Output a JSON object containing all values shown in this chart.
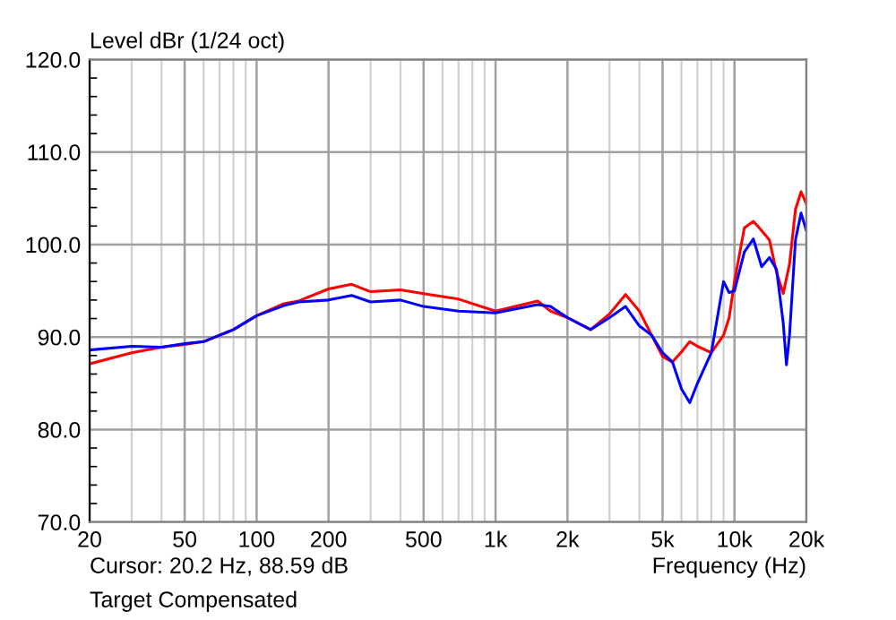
{
  "chart_data": {
    "type": "line",
    "title": "Level dBr (1/24 oct)",
    "xlabel": "Frequency (Hz)",
    "log": "x",
    "grid": true,
    "marker": "none",
    "line_style": "solid",
    "xlim": [
      20,
      20000
    ],
    "ylim": [
      70,
      120
    ],
    "xticks": [
      20,
      50,
      100,
      200,
      500,
      {
        "value": 1000,
        "label": "1k"
      },
      {
        "value": 2000,
        "label": "2k"
      },
      {
        "value": 5000,
        "label": "5k"
      },
      {
        "value": 10000,
        "label": "10k"
      },
      {
        "value": 20000,
        "label": "20k"
      }
    ],
    "yticks": [
      {
        "value": 70,
        "label": "70.0"
      },
      {
        "value": 80,
        "label": "80.0"
      },
      {
        "value": 90,
        "label": "90.0"
      },
      {
        "value": 100,
        "label": "100.0"
      },
      {
        "value": 110,
        "label": "110.0"
      },
      {
        "value": 120,
        "label": "120.0"
      }
    ],
    "annotations": [
      "Cursor: 20.2 Hz, 88.59 dB",
      "Target Compensated"
    ],
    "series": [
      {
        "color": "#ff0000",
        "x": [
          20,
          30,
          40,
          50,
          60,
          70,
          80,
          100,
          130,
          150,
          200,
          250,
          300,
          400,
          500,
          700,
          1000,
          1500,
          1700,
          2000,
          2500,
          3000,
          3500,
          4000,
          4500,
          5000,
          5500,
          6000,
          6500,
          7000,
          8000,
          9000,
          9500,
          10000,
          11000,
          12000,
          13000,
          14000,
          15000,
          16000,
          17000,
          18000,
          19000,
          20000
        ],
        "values": [
          87.1,
          88.3,
          88.9,
          89.2,
          89.5,
          90.2,
          90.8,
          92.3,
          93.6,
          93.9,
          95.2,
          95.7,
          94.9,
          95.1,
          94.7,
          94.1,
          92.8,
          93.9,
          92.8,
          92.1,
          90.8,
          92.5,
          94.6,
          92.8,
          90.2,
          87.9,
          87.3,
          88.4,
          89.5,
          89.0,
          88.3,
          90.2,
          92.1,
          96.0,
          101.8,
          102.5,
          101.5,
          100.5,
          97.0,
          94.7,
          97.9,
          103.8,
          105.7,
          104.4
        ]
      },
      {
        "color": "#0000ff",
        "x": [
          20,
          30,
          40,
          50,
          60,
          70,
          80,
          100,
          130,
          150,
          200,
          250,
          300,
          400,
          500,
          700,
          1000,
          1500,
          1700,
          2000,
          2500,
          3000,
          3500,
          4000,
          4500,
          5000,
          5500,
          6000,
          6500,
          7000,
          8000,
          9000,
          9500,
          10000,
          11000,
          12000,
          13000,
          14000,
          15000,
          16000,
          16500,
          17000,
          18000,
          19000,
          20000
        ],
        "values": [
          88.6,
          89.0,
          88.9,
          89.3,
          89.5,
          90.2,
          90.8,
          92.3,
          93.4,
          93.8,
          94.0,
          94.5,
          93.8,
          94.0,
          93.3,
          92.8,
          92.6,
          93.5,
          93.3,
          92.1,
          90.8,
          92.1,
          93.3,
          91.2,
          90.2,
          88.3,
          87.3,
          84.4,
          82.9,
          85.0,
          88.3,
          96.0,
          94.8,
          95.0,
          99.2,
          100.6,
          97.6,
          98.6,
          97.3,
          91.5,
          87.0,
          90.2,
          100.5,
          103.4,
          101.5
        ]
      }
    ]
  }
}
